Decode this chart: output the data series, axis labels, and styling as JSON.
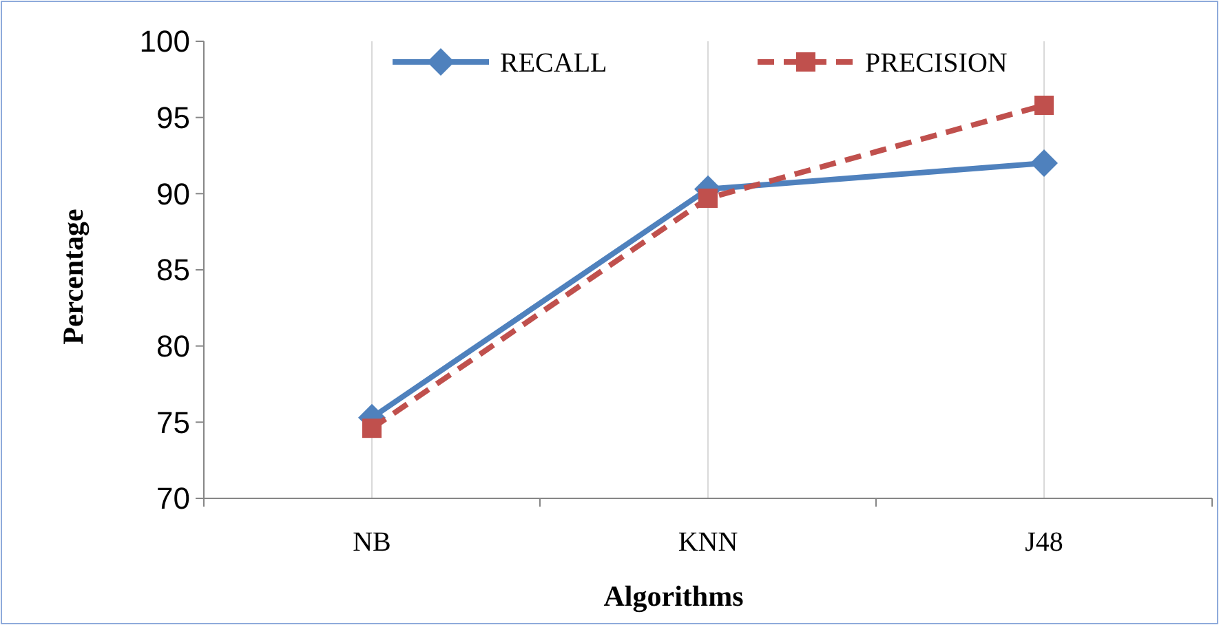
{
  "chart_data": {
    "type": "line",
    "xlabel": "Algorithms",
    "ylabel": "Percentage",
    "categories": [
      "NB",
      "KNN",
      "J48"
    ],
    "series": [
      {
        "name": "RECALL",
        "color": "#4f81bd",
        "values": [
          75.3,
          90.3,
          92.0
        ],
        "marker": "diamond",
        "line_style": "solid"
      },
      {
        "name": "PRECISION",
        "color": "#c0504d",
        "values": [
          74.6,
          89.7,
          95.8
        ],
        "marker": "square",
        "line_style": "dashed"
      }
    ],
    "ylim": [
      70,
      100
    ],
    "yticks": [
      70,
      75,
      80,
      85,
      90,
      95,
      100
    ],
    "grid": "x",
    "legend": "top"
  }
}
